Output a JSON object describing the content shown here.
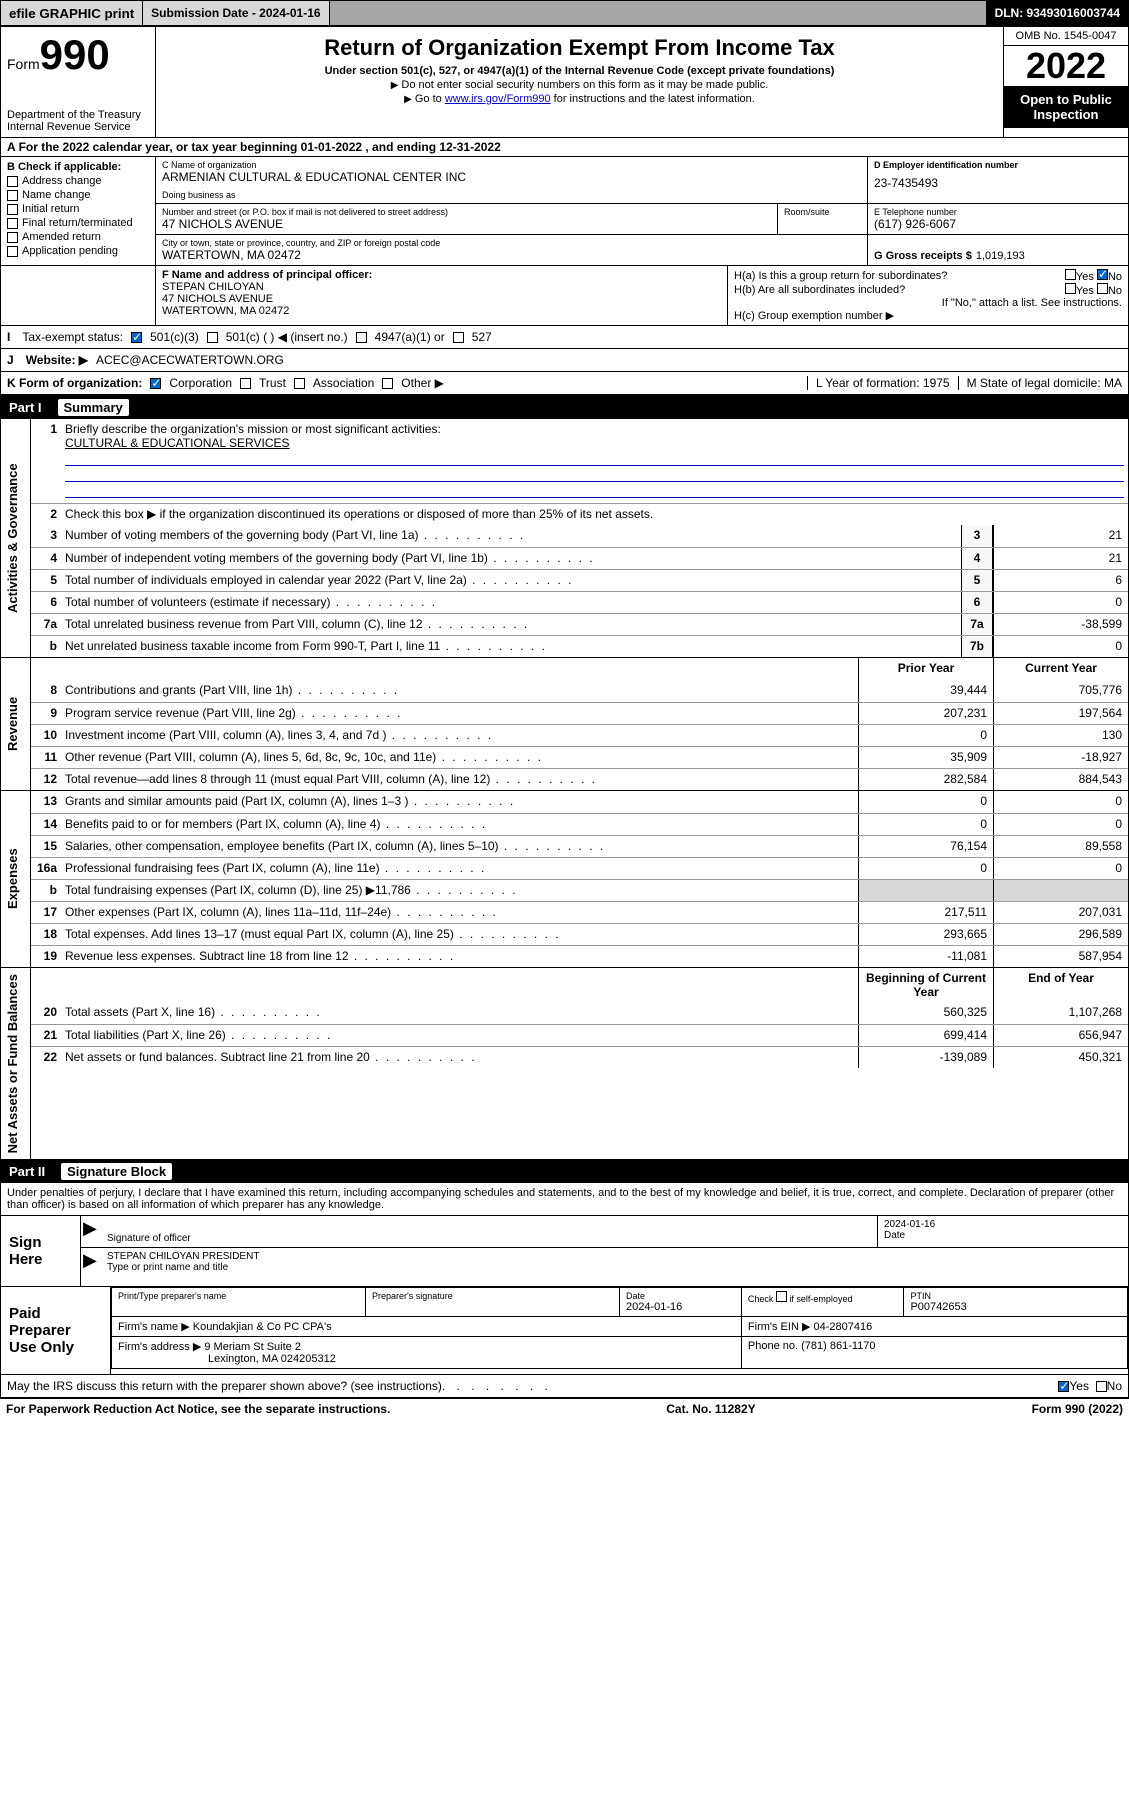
{
  "topbar": {
    "efile": "efile GRAPHIC print",
    "submission": "Submission Date - 2024-01-16",
    "dln": "DLN: 93493016003744"
  },
  "header": {
    "form_prefix": "Form",
    "form_num": "990",
    "dept": "Department of the Treasury Internal Revenue Service",
    "title": "Return of Organization Exempt From Income Tax",
    "sub1": "Under section 501(c), 527, or 4947(a)(1) of the Internal Revenue Code (except private foundations)",
    "sub2": "Do not enter social security numbers on this form as it may be made public.",
    "sub3_pre": "Go to ",
    "sub3_link": "www.irs.gov/Form990",
    "sub3_post": " for instructions and the latest information.",
    "omb": "OMB No. 1545-0047",
    "year": "2022",
    "open": "Open to Public Inspection"
  },
  "rowA": "For the 2022 calendar year, or tax year beginning 01-01-2022     , and ending 12-31-2022",
  "colB": {
    "hdr": "B Check if applicable:",
    "items": [
      "Address change",
      "Name change",
      "Initial return",
      "Final return/terminated",
      "Amended return",
      "Application pending"
    ]
  },
  "colC": {
    "name_lbl": "C Name of organization",
    "name": "ARMENIAN CULTURAL & EDUCATIONAL CENTER INC",
    "dba_lbl": "Doing business as",
    "street_lbl": "Number and street (or P.O. box if mail is not delivered to street address)",
    "street": "47 NICHOLS AVENUE",
    "room_lbl": "Room/suite",
    "city_lbl": "City or town, state or province, country, and ZIP or foreign postal code",
    "city": "WATERTOWN, MA  02472"
  },
  "colD": {
    "ein_lbl": "D Employer identification number",
    "ein": "23-7435493",
    "tel_lbl": "E Telephone number",
    "tel": "(617) 926-6067",
    "gross_lbl": "G Gross receipts $",
    "gross": "1,019,193"
  },
  "rowF": {
    "lbl": "F  Name and address of principal officer:",
    "name": "STEPAN CHILOYAN",
    "addr1": "47 NICHOLS AVENUE",
    "addr2": "WATERTOWN, MA  02472"
  },
  "rowH": {
    "a": "H(a)  Is this a group return for subordinates?",
    "b": "H(b)  Are all subordinates included?",
    "b_note": "If \"No,\" attach a list. See instructions.",
    "c": "H(c)  Group exemption number ▶",
    "yes": "Yes",
    "no": "No"
  },
  "rowI": {
    "lbl": "Tax-exempt status:",
    "opts": [
      "501(c)(3)",
      "501(c) (  ) ◀ (insert no.)",
      "4947(a)(1) or",
      "527"
    ]
  },
  "rowJ": {
    "lbl": "Website: ▶",
    "val": "ACEC@ACECWATERTOWN.ORG"
  },
  "rowK": {
    "lbl": "K Form of organization:",
    "opts": [
      "Corporation",
      "Trust",
      "Association",
      "Other ▶"
    ],
    "L": "L Year of formation: 1975",
    "M": "M State of legal domicile: MA"
  },
  "part1": {
    "num": "Part I",
    "title": "Summary"
  },
  "governance": {
    "tab": "Activities & Governance",
    "l1": "Briefly describe the organization's mission or most significant activities:",
    "l1v": "CULTURAL & EDUCATIONAL SERVICES",
    "l2": "Check this box ▶        if the organization discontinued its operations or disposed of more than 25% of its net assets.",
    "rows": [
      {
        "n": "3",
        "d": "Number of voting members of the governing body (Part VI, line 1a)",
        "b": "3",
        "v": "21"
      },
      {
        "n": "4",
        "d": "Number of independent voting members of the governing body (Part VI, line 1b)",
        "b": "4",
        "v": "21"
      },
      {
        "n": "5",
        "d": "Total number of individuals employed in calendar year 2022 (Part V, line 2a)",
        "b": "5",
        "v": "6"
      },
      {
        "n": "6",
        "d": "Total number of volunteers (estimate if necessary)",
        "b": "6",
        "v": "0"
      },
      {
        "n": "7a",
        "d": "Total unrelated business revenue from Part VIII, column (C), line 12",
        "b": "7a",
        "v": "-38,599"
      },
      {
        "n": "b",
        "d": "Net unrelated business taxable income from Form 990-T, Part I, line 11",
        "b": "7b",
        "v": "0"
      }
    ]
  },
  "revenue": {
    "tab": "Revenue",
    "hdr_prior": "Prior Year",
    "hdr_curr": "Current Year",
    "rows": [
      {
        "n": "8",
        "d": "Contributions and grants (Part VIII, line 1h)",
        "p": "39,444",
        "c": "705,776"
      },
      {
        "n": "9",
        "d": "Program service revenue (Part VIII, line 2g)",
        "p": "207,231",
        "c": "197,564"
      },
      {
        "n": "10",
        "d": "Investment income (Part VIII, column (A), lines 3, 4, and 7d )",
        "p": "0",
        "c": "130"
      },
      {
        "n": "11",
        "d": "Other revenue (Part VIII, column (A), lines 5, 6d, 8c, 9c, 10c, and 11e)",
        "p": "35,909",
        "c": "-18,927"
      },
      {
        "n": "12",
        "d": "Total revenue—add lines 8 through 11 (must equal Part VIII, column (A), line 12)",
        "p": "282,584",
        "c": "884,543"
      }
    ]
  },
  "expenses": {
    "tab": "Expenses",
    "rows": [
      {
        "n": "13",
        "d": "Grants and similar amounts paid (Part IX, column (A), lines 1–3 )",
        "p": "0",
        "c": "0"
      },
      {
        "n": "14",
        "d": "Benefits paid to or for members (Part IX, column (A), line 4)",
        "p": "0",
        "c": "0"
      },
      {
        "n": "15",
        "d": "Salaries, other compensation, employee benefits (Part IX, column (A), lines 5–10)",
        "p": "76,154",
        "c": "89,558"
      },
      {
        "n": "16a",
        "d": "Professional fundraising fees (Part IX, column (A), line 11e)",
        "p": "0",
        "c": "0"
      },
      {
        "n": "b",
        "d": "Total fundraising expenses (Part IX, column (D), line 25) ▶11,786",
        "p": "",
        "c": "",
        "shade": true
      },
      {
        "n": "17",
        "d": "Other expenses (Part IX, column (A), lines 11a–11d, 11f–24e)",
        "p": "217,511",
        "c": "207,031"
      },
      {
        "n": "18",
        "d": "Total expenses. Add lines 13–17 (must equal Part IX, column (A), line 25)",
        "p": "293,665",
        "c": "296,589"
      },
      {
        "n": "19",
        "d": "Revenue less expenses. Subtract line 18 from line 12",
        "p": "-11,081",
        "c": "587,954"
      }
    ]
  },
  "netassets": {
    "tab": "Net Assets or Fund Balances",
    "hdr_prior": "Beginning of Current Year",
    "hdr_curr": "End of Year",
    "rows": [
      {
        "n": "20",
        "d": "Total assets (Part X, line 16)",
        "p": "560,325",
        "c": "1,107,268"
      },
      {
        "n": "21",
        "d": "Total liabilities (Part X, line 26)",
        "p": "699,414",
        "c": "656,947"
      },
      {
        "n": "22",
        "d": "Net assets or fund balances. Subtract line 21 from line 20",
        "p": "-139,089",
        "c": "450,321"
      }
    ]
  },
  "part2": {
    "num": "Part II",
    "title": "Signature Block"
  },
  "penalties": "Under penalties of perjury, I declare that I have examined this return, including accompanying schedules and statements, and to the best of my knowledge and belief, it is true, correct, and complete. Declaration of preparer (other than officer) is based on all information of which preparer has any knowledge.",
  "sign": {
    "here": "Sign Here",
    "sig_lbl": "Signature of officer",
    "date_lbl": "Date",
    "date": "2024-01-16",
    "name": "STEPAN CHILOYAN  PRESIDENT",
    "name_lbl": "Type or print name and title"
  },
  "prep": {
    "title": "Paid Preparer Use Only",
    "h_name": "Print/Type preparer's name",
    "h_sig": "Preparer's signature",
    "h_date": "Date",
    "date": "2024-01-16",
    "h_check": "Check        if self-employed",
    "h_ptin": "PTIN",
    "ptin": "P00742653",
    "firm_lbl": "Firm's name     ▶",
    "firm": "Koundakjian & Co PC CPA's",
    "ein_lbl": "Firm's EIN ▶",
    "ein": "04-2807416",
    "addr_lbl": "Firm's address ▶",
    "addr1": "9 Meriam St Suite 2",
    "addr2": "Lexington, MA  024205312",
    "phone_lbl": "Phone no.",
    "phone": "(781) 861-1170"
  },
  "may_irs": "May the IRS discuss this return with the preparer shown above? (see instructions)",
  "foot": {
    "left": "For Paperwork Reduction Act Notice, see the separate instructions.",
    "mid": "Cat. No. 11282Y",
    "right": "Form 990 (2022)"
  }
}
